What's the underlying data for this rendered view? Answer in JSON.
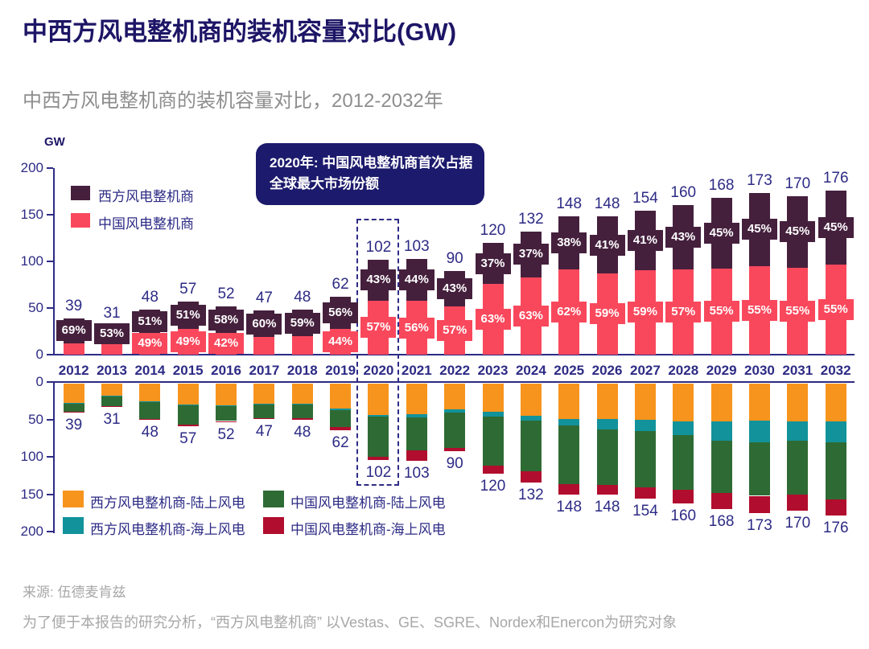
{
  "title": "中西方风电整机商的装机容量对比(GW)",
  "subtitle": "中西方风电整机商的装机容量对比，2012-2032年",
  "source": "来源: 伍德麦肯兹",
  "footnote": "为了便于本报告的研究分析，“西方风电整机商” 以Vestas、GE、SGRE、Nordex和Enercon为研究对象",
  "annotation": {
    "line1": "2020年: 中国风电整机商首次占据",
    "line2": "全球最大市场份额"
  },
  "axis": {
    "unit": "GW",
    "top_ticks": [
      200,
      150,
      100,
      50,
      0
    ],
    "bottom_ticks": [
      0,
      50,
      100,
      150,
      200
    ]
  },
  "colors": {
    "title": "#1D1566",
    "navy": "#2D2B85",
    "west": "#45203D",
    "china": "#F9485C",
    "west_onshore": "#F7941D",
    "west_offshore": "#12929B",
    "china_onshore": "#2E6B34",
    "china_offshore": "#B10D2E",
    "annotation_bg": "#1C1A6C",
    "subtitle_gray": "#8E8E8E",
    "footer_gray": "#A7A7A7"
  },
  "legend_top": [
    {
      "label": "西方风电整机商",
      "color_key": "west"
    },
    {
      "label": "中国风电整机商",
      "color_key": "china"
    }
  ],
  "legend_bottom": [
    {
      "label": "西方风电整机商-陆上风电",
      "color_key": "west_onshore"
    },
    {
      "label": "西方风电整机商-海上风电",
      "color_key": "west_offshore"
    },
    {
      "label": "中国风电整机商-陆上风电",
      "color_key": "china_onshore"
    },
    {
      "label": "中国风电整机商-海上风电",
      "color_key": "china_offshore"
    }
  ],
  "chart_data": [
    {
      "type": "bar",
      "subtype": "stacked-percent-share",
      "title": "中西方风电整机商的装机容量对比（上图：市场份额）",
      "ylabel": "GW",
      "ylim": [
        0,
        200
      ],
      "categories": [
        2012,
        2013,
        2014,
        2015,
        2016,
        2017,
        2018,
        2019,
        2020,
        2021,
        2022,
        2023,
        2024,
        2025,
        2026,
        2027,
        2028,
        2029,
        2030,
        2031,
        2032
      ],
      "totals_gw": [
        39,
        31,
        48,
        57,
        52,
        47,
        48,
        62,
        102,
        103,
        90,
        120,
        132,
        148,
        148,
        154,
        160,
        168,
        173,
        170,
        176
      ],
      "values_unit": "% of total",
      "series": [
        {
          "name": "西方风电整机商",
          "color_key": "west",
          "values": [
            69,
            53,
            51,
            51,
            58,
            60,
            59,
            56,
            43,
            44,
            43,
            37,
            37,
            38,
            41,
            41,
            43,
            45,
            45,
            45,
            45
          ]
        },
        {
          "name": "中国风电整机商",
          "color_key": "china",
          "values": [
            31,
            47,
            49,
            49,
            42,
            40,
            41,
            44,
            57,
            56,
            57,
            63,
            63,
            62,
            59,
            59,
            57,
            55,
            55,
            55,
            55
          ]
        }
      ],
      "china_label_shown": [
        false,
        false,
        true,
        true,
        true,
        false,
        false,
        true,
        true,
        true,
        true,
        true,
        true,
        true,
        true,
        true,
        true,
        true,
        true,
        true,
        true
      ],
      "highlight_year": 2020
    },
    {
      "type": "bar",
      "subtype": "stacked-inverted",
      "title": "中西方风电整机商的装机容量对比（下图：陆上/海上拆分，估算值）",
      "ylim": [
        0,
        200
      ],
      "estimated": true,
      "categories": [
        2012,
        2013,
        2014,
        2015,
        2016,
        2017,
        2018,
        2019,
        2020,
        2021,
        2022,
        2023,
        2024,
        2025,
        2026,
        2027,
        2028,
        2029,
        2030,
        2031,
        2032
      ],
      "totals_gw": [
        39,
        31,
        48,
        57,
        52,
        47,
        48,
        62,
        102,
        103,
        90,
        120,
        132,
        148,
        148,
        154,
        160,
        168,
        173,
        170,
        176
      ],
      "values_unit": "GW",
      "series": [
        {
          "name": "西方风电整机商-陆上风电",
          "color_key": "west_onshore",
          "values": [
            26,
            16,
            24,
            28,
            29,
            27,
            27,
            33,
            42,
            41,
            34,
            38,
            43,
            47,
            47,
            48,
            50,
            50,
            49,
            50,
            51
          ]
        },
        {
          "name": "西方风电整机商-海上风电",
          "color_key": "west_offshore",
          "values": [
            1,
            1,
            1,
            1,
            1,
            1,
            1,
            2,
            2,
            4,
            5,
            6,
            6,
            9,
            14,
            15,
            19,
            26,
            29,
            26,
            28
          ]
        },
        {
          "name": "中国风电整机商-陆上风电",
          "color_key": "china_onshore",
          "values": [
            11,
            13,
            22,
            26,
            20,
            18,
            18,
            23,
            54,
            44,
            47,
            66,
            68,
            78,
            74,
            76,
            73,
            70,
            72,
            72,
            76
          ]
        },
        {
          "name": "中国风电整机商-海上风电",
          "color_key": "china_offshore",
          "values": [
            1,
            1,
            1,
            2,
            2,
            1,
            2,
            4,
            4,
            14,
            4,
            10,
            15,
            14,
            13,
            15,
            18,
            22,
            23,
            22,
            21
          ]
        }
      ]
    }
  ]
}
